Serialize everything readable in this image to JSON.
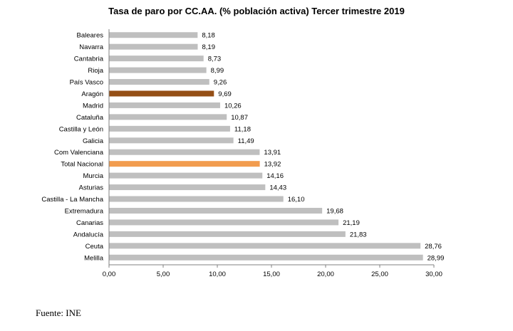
{
  "chart_data": {
    "type": "bar",
    "orientation": "horizontal",
    "title": "Tasa de paro por CC.AA. (% población activa) Tercer trimestre 2019",
    "categories": [
      "Baleares",
      "Navarra",
      "Cantabria",
      "Rioja",
      "País Vasco",
      "Aragón",
      "Madrid",
      "Cataluña",
      "Castilla y León",
      "Galicia",
      "Com Valenciana",
      "Total Nacional",
      "Murcia",
      "Asturias",
      "Castilla - La Mancha",
      "Extremadura",
      "Canarias",
      "Andalucía",
      "Ceuta",
      "Melilla"
    ],
    "values": [
      8.18,
      8.19,
      8.73,
      8.99,
      9.26,
      9.69,
      10.26,
      10.87,
      11.18,
      11.49,
      13.91,
      13.92,
      14.16,
      14.43,
      16.1,
      19.68,
      21.19,
      21.83,
      28.76,
      28.99
    ],
    "value_labels": [
      "8,18",
      "8,19",
      "8,73",
      "8,99",
      "9,26",
      "9,69",
      "10,26",
      "10,87",
      "11,18",
      "11,49",
      "13,91",
      "13,92",
      "14,16",
      "14,43",
      "16,10",
      "19,68",
      "21,19",
      "21,83",
      "28,76",
      "28,99"
    ],
    "xlim": [
      0,
      30
    ],
    "xticks": [
      0,
      5,
      10,
      15,
      20,
      25,
      30
    ],
    "xtick_labels": [
      "0,00",
      "5,00",
      "10,00",
      "15,00",
      "20,00",
      "25,00",
      "30,00"
    ],
    "xlabel": "",
    "ylabel": "",
    "grid": false,
    "legend": "none",
    "colors": {
      "default": "#bfbfbf",
      "highlight_aragon": "#954f16",
      "highlight_total": "#f29c4e"
    },
    "highlights": {
      "Aragón": "highlight_aragon",
      "Total Nacional": "highlight_total"
    }
  },
  "source_note": "Fuente: INE"
}
